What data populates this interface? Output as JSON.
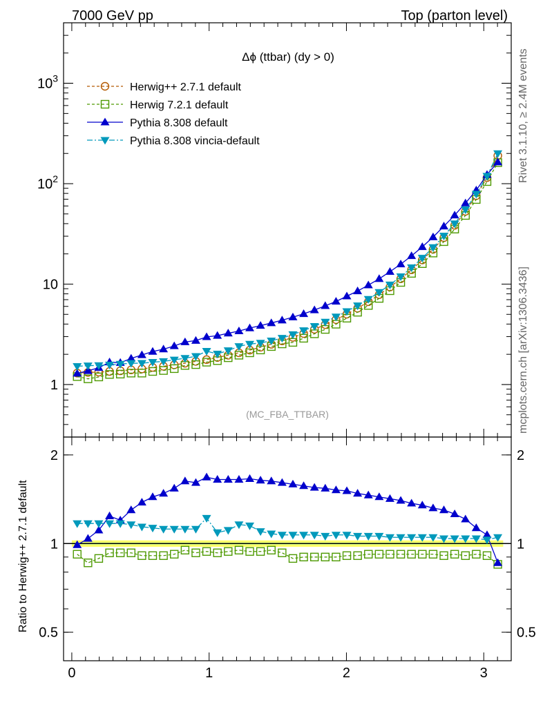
{
  "header": {
    "left_title": "7000 GeV pp",
    "right_title": "Top (parton level)"
  },
  "side_labels": {
    "rivet": "Rivet 3.1.10, ≥ 2.4M events",
    "mcplots": "mcplots.cern.ch [arXiv:1306.3436]"
  },
  "chart_data": [
    {
      "type": "line",
      "panel": "main",
      "title": "Δϕ (ttbar) (dy > 0)",
      "analysis_label": "(MC_FBA_TTBAR)",
      "yscale": "log",
      "xlim": [
        -0.06,
        3.2
      ],
      "ylim": [
        0.3,
        4000
      ],
      "yticks": [
        {
          "value": 1,
          "label": "1"
        },
        {
          "value": 10,
          "label": "10"
        },
        {
          "value": 100,
          "label": "10²"
        },
        {
          "value": 1000,
          "label": "10³"
        }
      ],
      "legend_position": "top-left",
      "x": [
        0.0393,
        0.1178,
        0.1963,
        0.2749,
        0.3534,
        0.432,
        0.5105,
        0.589,
        0.6676,
        0.7461,
        0.8247,
        0.9032,
        0.9817,
        1.0603,
        1.1388,
        1.2174,
        1.2959,
        1.3744,
        1.453,
        1.5315,
        1.6101,
        1.6886,
        1.7671,
        1.8457,
        1.9242,
        2.0028,
        2.0813,
        2.1598,
        2.2384,
        2.3169,
        2.3955,
        2.474,
        2.5525,
        2.6311,
        2.7096,
        2.7882,
        2.8667,
        2.9452,
        3.0238,
        3.1023
      ],
      "series": [
        {
          "name": "Herwig++ 2.7.1 default",
          "color": "#b35900",
          "marker": "circle-open",
          "dash": "4,3",
          "values": [
            1.3,
            1.32,
            1.33,
            1.35,
            1.37,
            1.4,
            1.43,
            1.48,
            1.52,
            1.57,
            1.63,
            1.7,
            1.77,
            1.86,
            1.96,
            2.07,
            2.2,
            2.35,
            2.52,
            2.72,
            2.95,
            3.22,
            3.55,
            3.95,
            4.43,
            5.02,
            5.75,
            6.68,
            7.85,
            9.35,
            11.3,
            13.9,
            17.4,
            22.2,
            29.0,
            38.5,
            53.0,
            76.0,
            115.0,
            190.0
          ]
        },
        {
          "name": "Herwig 7.2.1 default",
          "color": "#4d9900",
          "marker": "square-open",
          "dash": "4,3",
          "values": [
            1.2,
            1.14,
            1.19,
            1.26,
            1.27,
            1.3,
            1.3,
            1.35,
            1.38,
            1.44,
            1.55,
            1.58,
            1.67,
            1.73,
            1.85,
            1.96,
            2.07,
            2.21,
            2.39,
            2.54,
            2.63,
            2.89,
            3.2,
            3.54,
            3.99,
            4.58,
            5.25,
            6.13,
            7.21,
            8.6,
            10.4,
            12.8,
            16.0,
            20.4,
            26.5,
            35.3,
            48.3,
            69.6,
            105.0,
            162.0
          ]
        },
        {
          "name": "Pythia 8.308 default",
          "color": "#0000cc",
          "marker": "triangle-up",
          "dash": "",
          "values": [
            1.29,
            1.37,
            1.47,
            1.67,
            1.65,
            1.82,
            1.97,
            2.13,
            2.25,
            2.42,
            2.65,
            2.74,
            2.98,
            3.07,
            3.24,
            3.41,
            3.65,
            3.86,
            4.1,
            4.37,
            4.69,
            5.06,
            5.52,
            6.08,
            6.72,
            7.58,
            8.53,
            9.77,
            11.3,
            13.3,
            15.8,
            19.1,
            23.5,
            29.4,
            37.7,
            48.5,
            64.0,
            86.0,
            123.0,
            164.0
          ]
        },
        {
          "name": "Pythia 8.308 vincia-default",
          "color": "#0099bb",
          "marker": "triangle-down",
          "dash": "8,3,2,3",
          "values": [
            1.52,
            1.54,
            1.55,
            1.57,
            1.6,
            1.63,
            1.63,
            1.67,
            1.7,
            1.76,
            1.83,
            1.91,
            2.15,
            2.02,
            2.18,
            2.4,
            2.53,
            2.59,
            2.73,
            2.9,
            3.15,
            3.45,
            3.8,
            4.2,
            4.73,
            5.35,
            6.1,
            7.08,
            8.3,
            9.85,
            11.9,
            14.6,
            18.2,
            23.2,
            30.2,
            40.0,
            55.2,
            79.0,
            119.0,
            200.0
          ]
        }
      ]
    },
    {
      "type": "line",
      "panel": "ratio",
      "ylabel": "Ratio to Herwig++ 2.7.1 default",
      "yscale": "log",
      "xlim": [
        -0.06,
        3.2
      ],
      "ylim": [
        0.4,
        2.3
      ],
      "xticks": [
        {
          "value": 0,
          "label": "0"
        },
        {
          "value": 1,
          "label": "1"
        },
        {
          "value": 2,
          "label": "2"
        },
        {
          "value": 3,
          "label": "3"
        }
      ],
      "yticks": [
        {
          "value": 0.5,
          "label": "0.5"
        },
        {
          "value": 1,
          "label": "1"
        },
        {
          "value": 2,
          "label": "2"
        }
      ],
      "x": [
        0.0393,
        0.1178,
        0.1963,
        0.2749,
        0.3534,
        0.432,
        0.5105,
        0.589,
        0.6676,
        0.7461,
        0.8247,
        0.9032,
        0.9817,
        1.0603,
        1.1388,
        1.2174,
        1.2959,
        1.3744,
        1.453,
        1.5315,
        1.6101,
        1.6886,
        1.7671,
        1.8457,
        1.9242,
        2.0028,
        2.0813,
        2.1598,
        2.2384,
        2.3169,
        2.3955,
        2.474,
        2.5525,
        2.6311,
        2.7096,
        2.7882,
        2.8667,
        2.9452,
        3.0238,
        3.1023
      ],
      "band": {
        "color": "#ffff66",
        "inner_color": "#ccff99",
        "low": 0.975,
        "high": 1.025
      },
      "series": [
        {
          "name": "Herwig 7.2.1 default",
          "color": "#4d9900",
          "marker": "square-open",
          "dash": "4,3",
          "values": [
            0.92,
            0.86,
            0.89,
            0.93,
            0.93,
            0.93,
            0.91,
            0.91,
            0.91,
            0.92,
            0.95,
            0.93,
            0.94,
            0.93,
            0.94,
            0.95,
            0.94,
            0.94,
            0.95,
            0.93,
            0.89,
            0.9,
            0.9,
            0.9,
            0.9,
            0.91,
            0.91,
            0.92,
            0.92,
            0.92,
            0.92,
            0.92,
            0.92,
            0.92,
            0.91,
            0.92,
            0.91,
            0.92,
            0.91,
            0.85
          ]
        },
        {
          "name": "Pythia 8.308 default",
          "color": "#0000cc",
          "marker": "triangle-up",
          "dash": "",
          "values": [
            0.99,
            1.04,
            1.11,
            1.24,
            1.2,
            1.3,
            1.38,
            1.44,
            1.48,
            1.54,
            1.63,
            1.61,
            1.68,
            1.65,
            1.65,
            1.65,
            1.66,
            1.64,
            1.63,
            1.61,
            1.59,
            1.57,
            1.55,
            1.54,
            1.52,
            1.51,
            1.48,
            1.46,
            1.44,
            1.42,
            1.4,
            1.37,
            1.35,
            1.32,
            1.3,
            1.26,
            1.21,
            1.13,
            1.07,
            0.86
          ]
        },
        {
          "name": "Pythia 8.308 vincia-default",
          "color": "#0099bb",
          "marker": "triangle-down",
          "dash": "8,3,2,3",
          "values": [
            1.17,
            1.17,
            1.17,
            1.17,
            1.17,
            1.16,
            1.14,
            1.13,
            1.12,
            1.12,
            1.12,
            1.12,
            1.22,
            1.09,
            1.11,
            1.16,
            1.15,
            1.1,
            1.08,
            1.07,
            1.07,
            1.07,
            1.07,
            1.06,
            1.07,
            1.07,
            1.06,
            1.06,
            1.06,
            1.05,
            1.05,
            1.05,
            1.05,
            1.05,
            1.04,
            1.04,
            1.04,
            1.04,
            1.03,
            1.05
          ]
        }
      ]
    }
  ]
}
